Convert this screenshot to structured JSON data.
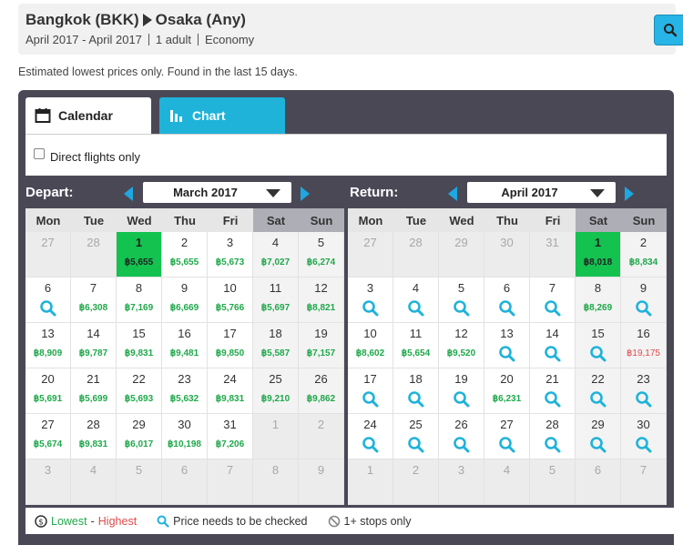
{
  "header": {
    "origin": "Bangkok (BKK)",
    "destination": "Osaka (Any)",
    "dates": "April 2017 - April 2017",
    "passengers": "1 adult",
    "cabin": "Economy"
  },
  "notice": "Estimated lowest prices only. Found in the last 15 days.",
  "tabs": {
    "calendar": "Calendar",
    "chart": "Chart"
  },
  "filter": {
    "direct_only": "Direct flights only"
  },
  "weekdays": [
    "Mon",
    "Tue",
    "Wed",
    "Thu",
    "Fri",
    "Sat",
    "Sun"
  ],
  "depart": {
    "title": "Depart:",
    "month": "March 2017",
    "weeks": [
      [
        {
          "d": "27",
          "m": true
        },
        {
          "d": "28",
          "m": true
        },
        {
          "d": "1",
          "p": "฿5,655",
          "sel": true
        },
        {
          "d": "2",
          "p": "฿5,655"
        },
        {
          "d": "3",
          "p": "฿5,673"
        },
        {
          "d": "4",
          "p": "฿7,027"
        },
        {
          "d": "5",
          "p": "฿6,274"
        }
      ],
      [
        {
          "d": "6",
          "q": true
        },
        {
          "d": "7",
          "p": "฿6,308"
        },
        {
          "d": "8",
          "p": "฿7,169"
        },
        {
          "d": "9",
          "p": "฿6,669"
        },
        {
          "d": "10",
          "p": "฿5,766"
        },
        {
          "d": "11",
          "p": "฿5,697"
        },
        {
          "d": "12",
          "p": "฿8,821"
        }
      ],
      [
        {
          "d": "13",
          "p": "฿8,909"
        },
        {
          "d": "14",
          "p": "฿9,787"
        },
        {
          "d": "15",
          "p": "฿9,831"
        },
        {
          "d": "16",
          "p": "฿9,481"
        },
        {
          "d": "17",
          "p": "฿9,850"
        },
        {
          "d": "18",
          "p": "฿5,587"
        },
        {
          "d": "19",
          "p": "฿7,157"
        }
      ],
      [
        {
          "d": "20",
          "p": "฿5,691"
        },
        {
          "d": "21",
          "p": "฿5,699"
        },
        {
          "d": "22",
          "p": "฿5,693"
        },
        {
          "d": "23",
          "p": "฿5,632"
        },
        {
          "d": "24",
          "p": "฿9,831"
        },
        {
          "d": "25",
          "p": "฿9,210"
        },
        {
          "d": "26",
          "p": "฿9,862"
        }
      ],
      [
        {
          "d": "27",
          "p": "฿5,674"
        },
        {
          "d": "28",
          "p": "฿9,831"
        },
        {
          "d": "29",
          "p": "฿6,017"
        },
        {
          "d": "30",
          "p": "฿10,198"
        },
        {
          "d": "31",
          "p": "฿7,206"
        },
        {
          "d": "1",
          "m": true
        },
        {
          "d": "2",
          "m": true
        }
      ],
      [
        {
          "d": "3",
          "m": true
        },
        {
          "d": "4",
          "m": true
        },
        {
          "d": "5",
          "m": true
        },
        {
          "d": "6",
          "m": true
        },
        {
          "d": "7",
          "m": true
        },
        {
          "d": "8",
          "m": true
        },
        {
          "d": "9",
          "m": true
        }
      ]
    ]
  },
  "return": {
    "title": "Return:",
    "month": "April 2017",
    "weeks": [
      [
        {
          "d": "27",
          "m": true
        },
        {
          "d": "28",
          "m": true
        },
        {
          "d": "29",
          "m": true
        },
        {
          "d": "30",
          "m": true
        },
        {
          "d": "31",
          "m": true
        },
        {
          "d": "1",
          "p": "฿8,018",
          "sel": true
        },
        {
          "d": "2",
          "p": "฿8,834"
        }
      ],
      [
        {
          "d": "3",
          "q": true
        },
        {
          "d": "4",
          "q": true
        },
        {
          "d": "5",
          "q": true
        },
        {
          "d": "6",
          "q": true
        },
        {
          "d": "7",
          "q": true
        },
        {
          "d": "8",
          "p": "฿8,269"
        },
        {
          "d": "9",
          "q": true
        }
      ],
      [
        {
          "d": "10",
          "p": "฿8,602"
        },
        {
          "d": "11",
          "p": "฿5,654"
        },
        {
          "d": "12",
          "p": "฿9,520"
        },
        {
          "d": "13",
          "q": true
        },
        {
          "d": "14",
          "q": true
        },
        {
          "d": "15",
          "q": true
        },
        {
          "d": "16",
          "p": "฿19,175",
          "high": true
        }
      ],
      [
        {
          "d": "17",
          "q": true
        },
        {
          "d": "18",
          "q": true
        },
        {
          "d": "19",
          "q": true
        },
        {
          "d": "20",
          "p": "฿6,231"
        },
        {
          "d": "21",
          "q": true
        },
        {
          "d": "22",
          "q": true
        },
        {
          "d": "23",
          "q": true
        }
      ],
      [
        {
          "d": "24",
          "q": true
        },
        {
          "d": "25",
          "q": true
        },
        {
          "d": "26",
          "q": true
        },
        {
          "d": "27",
          "q": true
        },
        {
          "d": "28",
          "q": true
        },
        {
          "d": "29",
          "q": true
        },
        {
          "d": "30",
          "q": true
        }
      ],
      [
        {
          "d": "1",
          "m": true
        },
        {
          "d": "2",
          "m": true
        },
        {
          "d": "3",
          "m": true
        },
        {
          "d": "4",
          "m": true
        },
        {
          "d": "5",
          "m": true
        },
        {
          "d": "6",
          "m": true
        },
        {
          "d": "7",
          "m": true
        }
      ]
    ]
  },
  "legend": {
    "lowest": "Lowest",
    "separator": "-",
    "highest": "Highest",
    "check": "Price needs to be checked",
    "stops": "1+ stops only"
  },
  "colors": {
    "accent": "#1fb3da",
    "selected": "#13c24f",
    "price": "#1fa84a",
    "high": "#e04b4b",
    "panel": "#4b4856"
  },
  "icons": {
    "search": "search-icon",
    "calendar": "calendar-icon",
    "chart": "bar-chart-icon",
    "magnifier": "magnifier-icon",
    "coin": "coin-icon",
    "no-stops": "no-entry-icon"
  }
}
